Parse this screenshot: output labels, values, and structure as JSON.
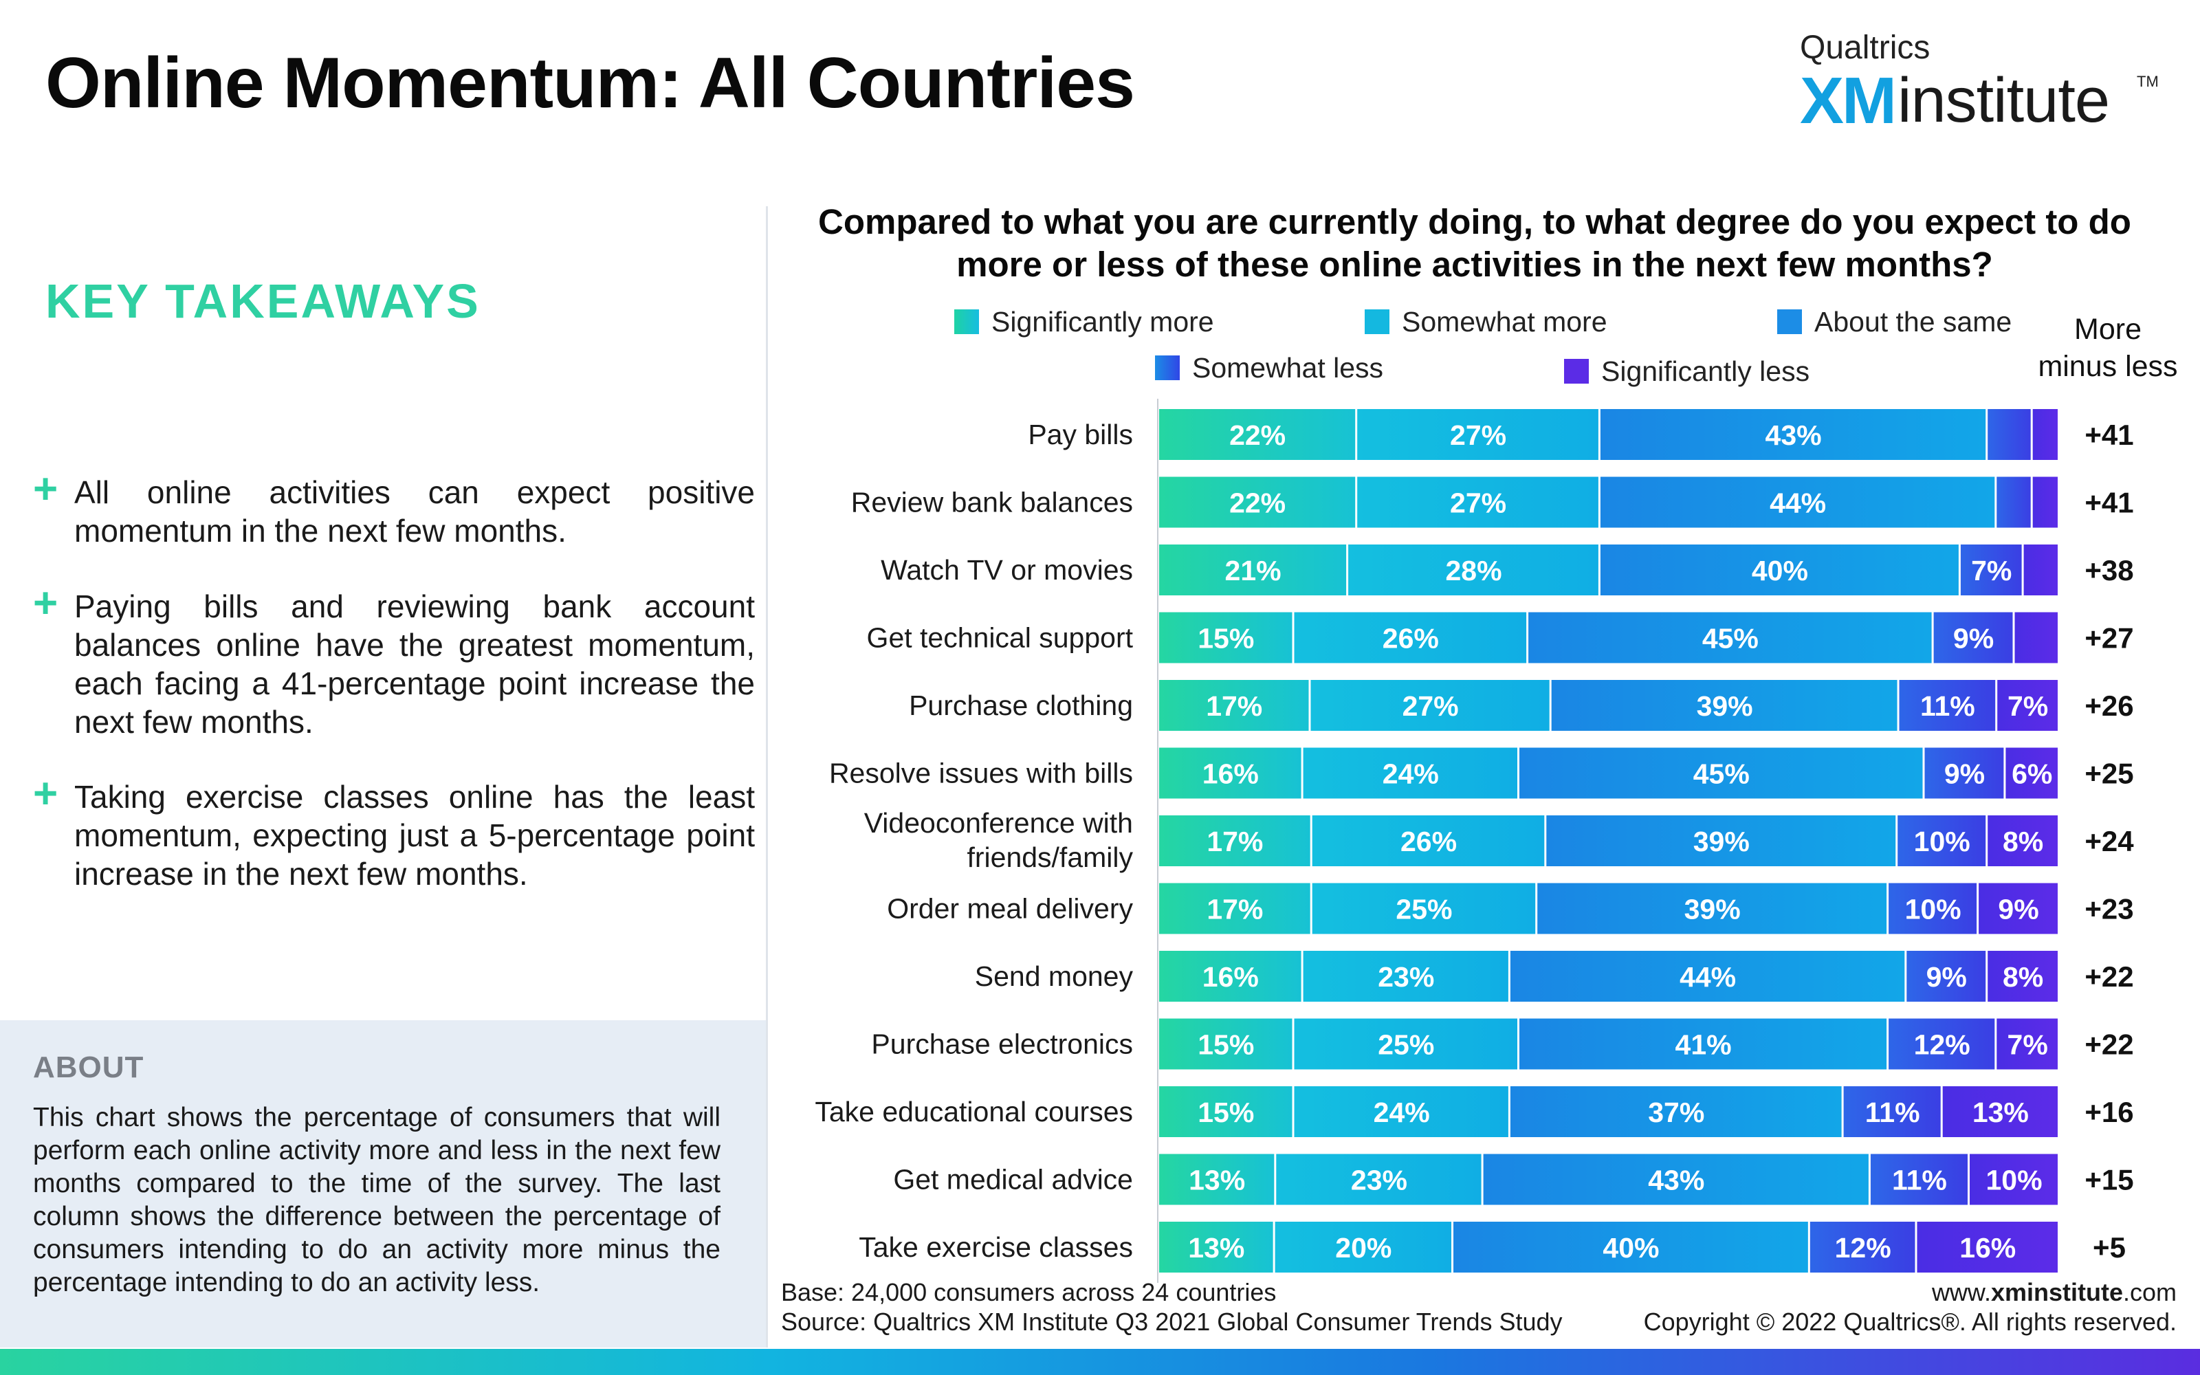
{
  "page": {
    "title": "Online Momentum: All Countries"
  },
  "brand": {
    "company": "Qualtrics",
    "xm": "XM",
    "institute": "institute",
    "tm": "TM"
  },
  "takeaways": {
    "heading": "KEY TAKEAWAYS",
    "items": [
      "All online activities can expect positive momentum in the next few months.",
      "Paying bills and reviewing bank account balances online have the greatest momentum, each facing a 41-percentage point increase the next few months.",
      "Taking exercise classes online has the least momentum, expecting just a 5-percentage point increase in the next few months."
    ]
  },
  "about": {
    "heading": "ABOUT",
    "text": "This chart shows the percentage of consumers that will perform each online activity more and less in the next few months compared to the time of the survey. The last column shows the difference between the percentage of consumers intending to do an activity more minus the percentage intending to do an activity less."
  },
  "footer": {
    "base": "Base: 24,000 consumers across 24 countries",
    "source": "Source: Qualtrics XM Institute Q3 2021 Global Consumer Trends Study",
    "url_prefix": "www.",
    "url_bold": "xminstitute",
    "url_suffix": ".com",
    "copyright": "Copyright © 2022 Qualtrics®. All rights reserved."
  },
  "colors": {
    "brand_green": "#2fd0a2",
    "significantly_more": "#22d1a6",
    "somewhat_more": "#14b8e0",
    "about_the_same": "#1c8de6",
    "somewhat_less": "#2f5ce6",
    "significantly_less": "#5b2ce6"
  },
  "chart_data": {
    "type": "bar",
    "orientation": "horizontal",
    "stacked": true,
    "title": "Compared to what you are currently doing, to what degree do you expect to do more or less of these online activities in the next few months?",
    "legend_placement": "top",
    "categories": [
      "Pay bills",
      "Review bank balances",
      "Watch TV or movies",
      "Get technical support",
      "Purchase clothing",
      "Resolve issues with bills",
      "Videoconference with friends/family",
      "Order meal delivery",
      "Send money",
      "Purchase electronics",
      "Take educational courses",
      "Get medical advice",
      "Take exercise classes"
    ],
    "category_lines": [
      [
        "Pay bills"
      ],
      [
        "Review bank balances"
      ],
      [
        "Watch TV or movies"
      ],
      [
        "Get technical support"
      ],
      [
        "Purchase clothing"
      ],
      [
        "Resolve issues with bills"
      ],
      [
        "Videoconference with",
        "friends/family"
      ],
      [
        "Order meal delivery"
      ],
      [
        "Send money"
      ],
      [
        "Purchase electronics"
      ],
      [
        "Take educational courses"
      ],
      [
        "Get medical advice"
      ],
      [
        "Take exercise classes"
      ]
    ],
    "series": [
      {
        "name": "Significantly more",
        "color": "#22d1a6",
        "values": [
          22,
          22,
          21,
          15,
          17,
          16,
          17,
          17,
          16,
          15,
          15,
          13,
          13
        ]
      },
      {
        "name": "Somewhat more",
        "color": "#14b8e0",
        "values": [
          27,
          27,
          28,
          26,
          27,
          24,
          26,
          25,
          23,
          25,
          24,
          23,
          20
        ]
      },
      {
        "name": "About the same",
        "color": "#1c8de6",
        "values": [
          43,
          44,
          40,
          45,
          39,
          45,
          39,
          39,
          44,
          41,
          37,
          43,
          40
        ]
      },
      {
        "name": "Somewhat less",
        "color": "#2f5ce6",
        "values": [
          5,
          4,
          7,
          9,
          11,
          9,
          10,
          10,
          9,
          12,
          11,
          11,
          12
        ]
      },
      {
        "name": "Significantly less",
        "color": "#5b2ce6",
        "values": [
          3,
          3,
          4,
          5,
          7,
          6,
          8,
          9,
          8,
          7,
          13,
          10,
          16
        ]
      }
    ],
    "label_visible": [
      [
        true,
        true,
        true,
        false,
        false
      ],
      [
        true,
        true,
        true,
        false,
        false
      ],
      [
        true,
        true,
        true,
        true,
        false
      ],
      [
        true,
        true,
        true,
        true,
        false
      ],
      [
        true,
        true,
        true,
        true,
        true
      ],
      [
        true,
        true,
        true,
        true,
        true
      ],
      [
        true,
        true,
        true,
        true,
        true
      ],
      [
        true,
        true,
        true,
        true,
        true
      ],
      [
        true,
        true,
        true,
        true,
        true
      ],
      [
        true,
        true,
        true,
        true,
        true
      ],
      [
        true,
        true,
        true,
        true,
        true
      ],
      [
        true,
        true,
        true,
        true,
        true
      ],
      [
        true,
        true,
        true,
        true,
        true
      ]
    ],
    "net_header": "More minus less",
    "net_header_lines": [
      "More",
      "minus less"
    ],
    "net": [
      "+41",
      "+41",
      "+38",
      "+27",
      "+26",
      "+25",
      "+24",
      "+23",
      "+22",
      "+22",
      "+16",
      "+15",
      "+5"
    ]
  }
}
